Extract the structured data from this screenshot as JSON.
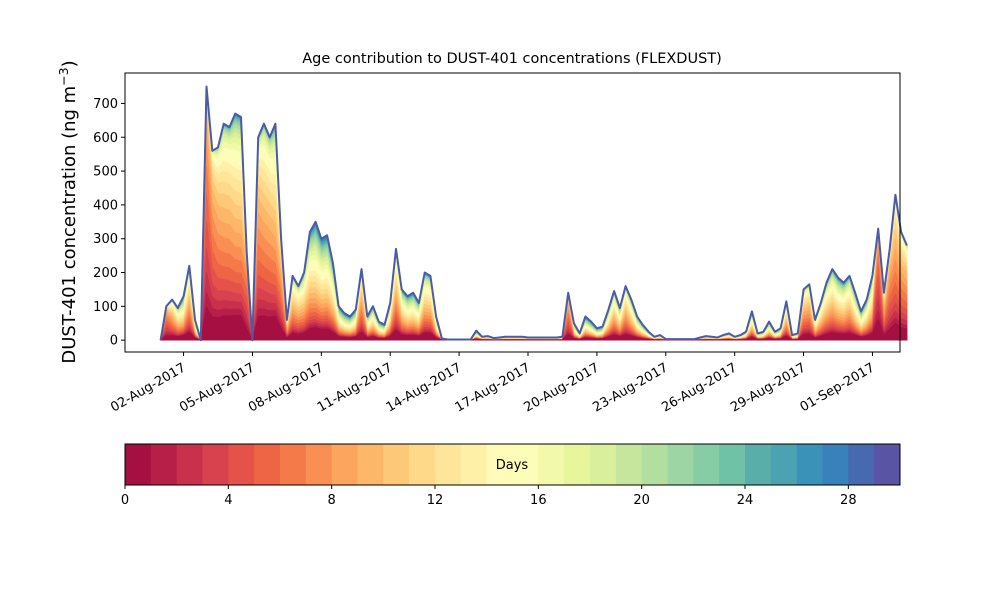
{
  "chart_data": {
    "type": "area",
    "subtype": "stacked-age-contribution",
    "title": "Age contribution to DUST-401 concentrations (FLEXDUST)",
    "ylabel": "DUST-401 concentration (ng m",
    "ylabel_superscript": "−3",
    "ylabel_suffix": ")",
    "xlabel": "",
    "ylim": [
      -35,
      790
    ],
    "yticks": [
      0,
      100,
      200,
      300,
      400,
      500,
      600,
      700
    ],
    "x_start": "2017-08-01T00:00",
    "x_end": "2017-09-01T00:00",
    "xlim_days": [
      -1.55,
      32.2
    ],
    "xtick_days": [
      1,
      4,
      7,
      10,
      13,
      16,
      19,
      22,
      25,
      28,
      31
    ],
    "xtick_labels": [
      "02-Aug-2017",
      "05-Aug-2017",
      "08-Aug-2017",
      "11-Aug-2017",
      "14-Aug-2017",
      "17-Aug-2017",
      "20-Aug-2017",
      "23-Aug-2017",
      "26-Aug-2017",
      "29-Aug-2017",
      "01-Sep-2017"
    ],
    "step_hours": 6,
    "total_concentration": [
      0,
      100,
      120,
      95,
      130,
      220,
      60,
      0,
      750,
      560,
      570,
      640,
      630,
      670,
      660,
      260,
      0,
      600,
      640,
      600,
      640,
      300,
      60,
      190,
      160,
      200,
      320,
      350,
      300,
      310,
      230,
      100,
      80,
      70,
      90,
      210,
      70,
      100,
      55,
      45,
      110,
      270,
      150,
      130,
      140,
      110,
      200,
      190,
      70,
      5,
      2,
      2,
      2,
      2,
      2,
      28,
      10,
      12,
      6,
      8,
      10,
      10,
      10,
      10,
      8,
      8,
      8,
      8,
      8,
      8,
      10,
      140,
      50,
      20,
      70,
      55,
      35,
      40,
      90,
      145,
      95,
      160,
      120,
      70,
      45,
      25,
      10,
      15,
      3,
      3,
      3,
      3,
      3,
      3,
      8,
      12,
      10,
      8,
      15,
      20,
      10,
      15,
      25,
      85,
      20,
      25,
      55,
      25,
      35,
      115,
      15,
      20,
      150,
      165,
      60,
      110,
      170,
      210,
      185,
      170,
      190,
      140,
      85,
      120,
      190,
      330,
      140,
      270,
      430,
      320,
      280
    ],
    "mean_age_days": [
      8,
      5,
      8,
      10,
      12,
      9,
      14,
      16,
      5,
      6,
      7,
      8,
      8,
      9,
      9,
      5,
      5,
      7,
      8,
      8,
      9,
      7,
      10,
      9,
      9,
      10,
      11,
      12,
      12,
      12,
      12,
      13,
      14,
      14,
      13,
      8,
      13,
      12,
      14,
      14,
      12,
      9,
      11,
      12,
      12,
      12,
      10,
      10,
      14,
      18,
      18,
      18,
      18,
      18,
      18,
      18,
      18,
      18,
      18,
      18,
      18,
      18,
      18,
      18,
      18,
      18,
      18,
      18,
      18,
      18,
      18,
      6,
      14,
      16,
      14,
      15,
      16,
      15,
      12,
      10,
      12,
      9,
      11,
      13,
      14,
      15,
      16,
      16,
      18,
      18,
      18,
      18,
      18,
      18,
      18,
      18,
      18,
      18,
      17,
      16,
      16,
      16,
      15,
      12,
      16,
      15,
      13,
      15,
      14,
      10,
      16,
      15,
      8,
      8,
      11,
      10,
      10,
      10,
      11,
      11,
      10,
      12,
      13,
      12,
      11,
      4,
      8,
      6,
      7,
      7,
      7
    ],
    "colorbar": {
      "label": "Days",
      "range": [
        0,
        30
      ],
      "bins": 30,
      "ticks": [
        0,
        4,
        8,
        12,
        16,
        20,
        24,
        28
      ],
      "colormap": "Spectral",
      "colors": [
        "#a60f42",
        "#b81f48",
        "#c8304b",
        "#d8424e",
        "#e5524a",
        "#ee6545",
        "#f57a49",
        "#f98f53",
        "#fca55e",
        "#fdb769",
        "#fec879",
        "#fed98a",
        "#fee59a",
        "#fff0a8",
        "#fffbb8",
        "#fbfdb8",
        "#f2f9aa",
        "#e7f59b",
        "#d9ef9b",
        "#c6e69d",
        "#b2de9f",
        "#9dd5a4",
        "#86cca5",
        "#6fc2a5",
        "#5aaeaa",
        "#4ba2b1",
        "#3a92b8",
        "#3981ba",
        "#4769b0",
        "#5a54a4"
      ]
    }
  }
}
